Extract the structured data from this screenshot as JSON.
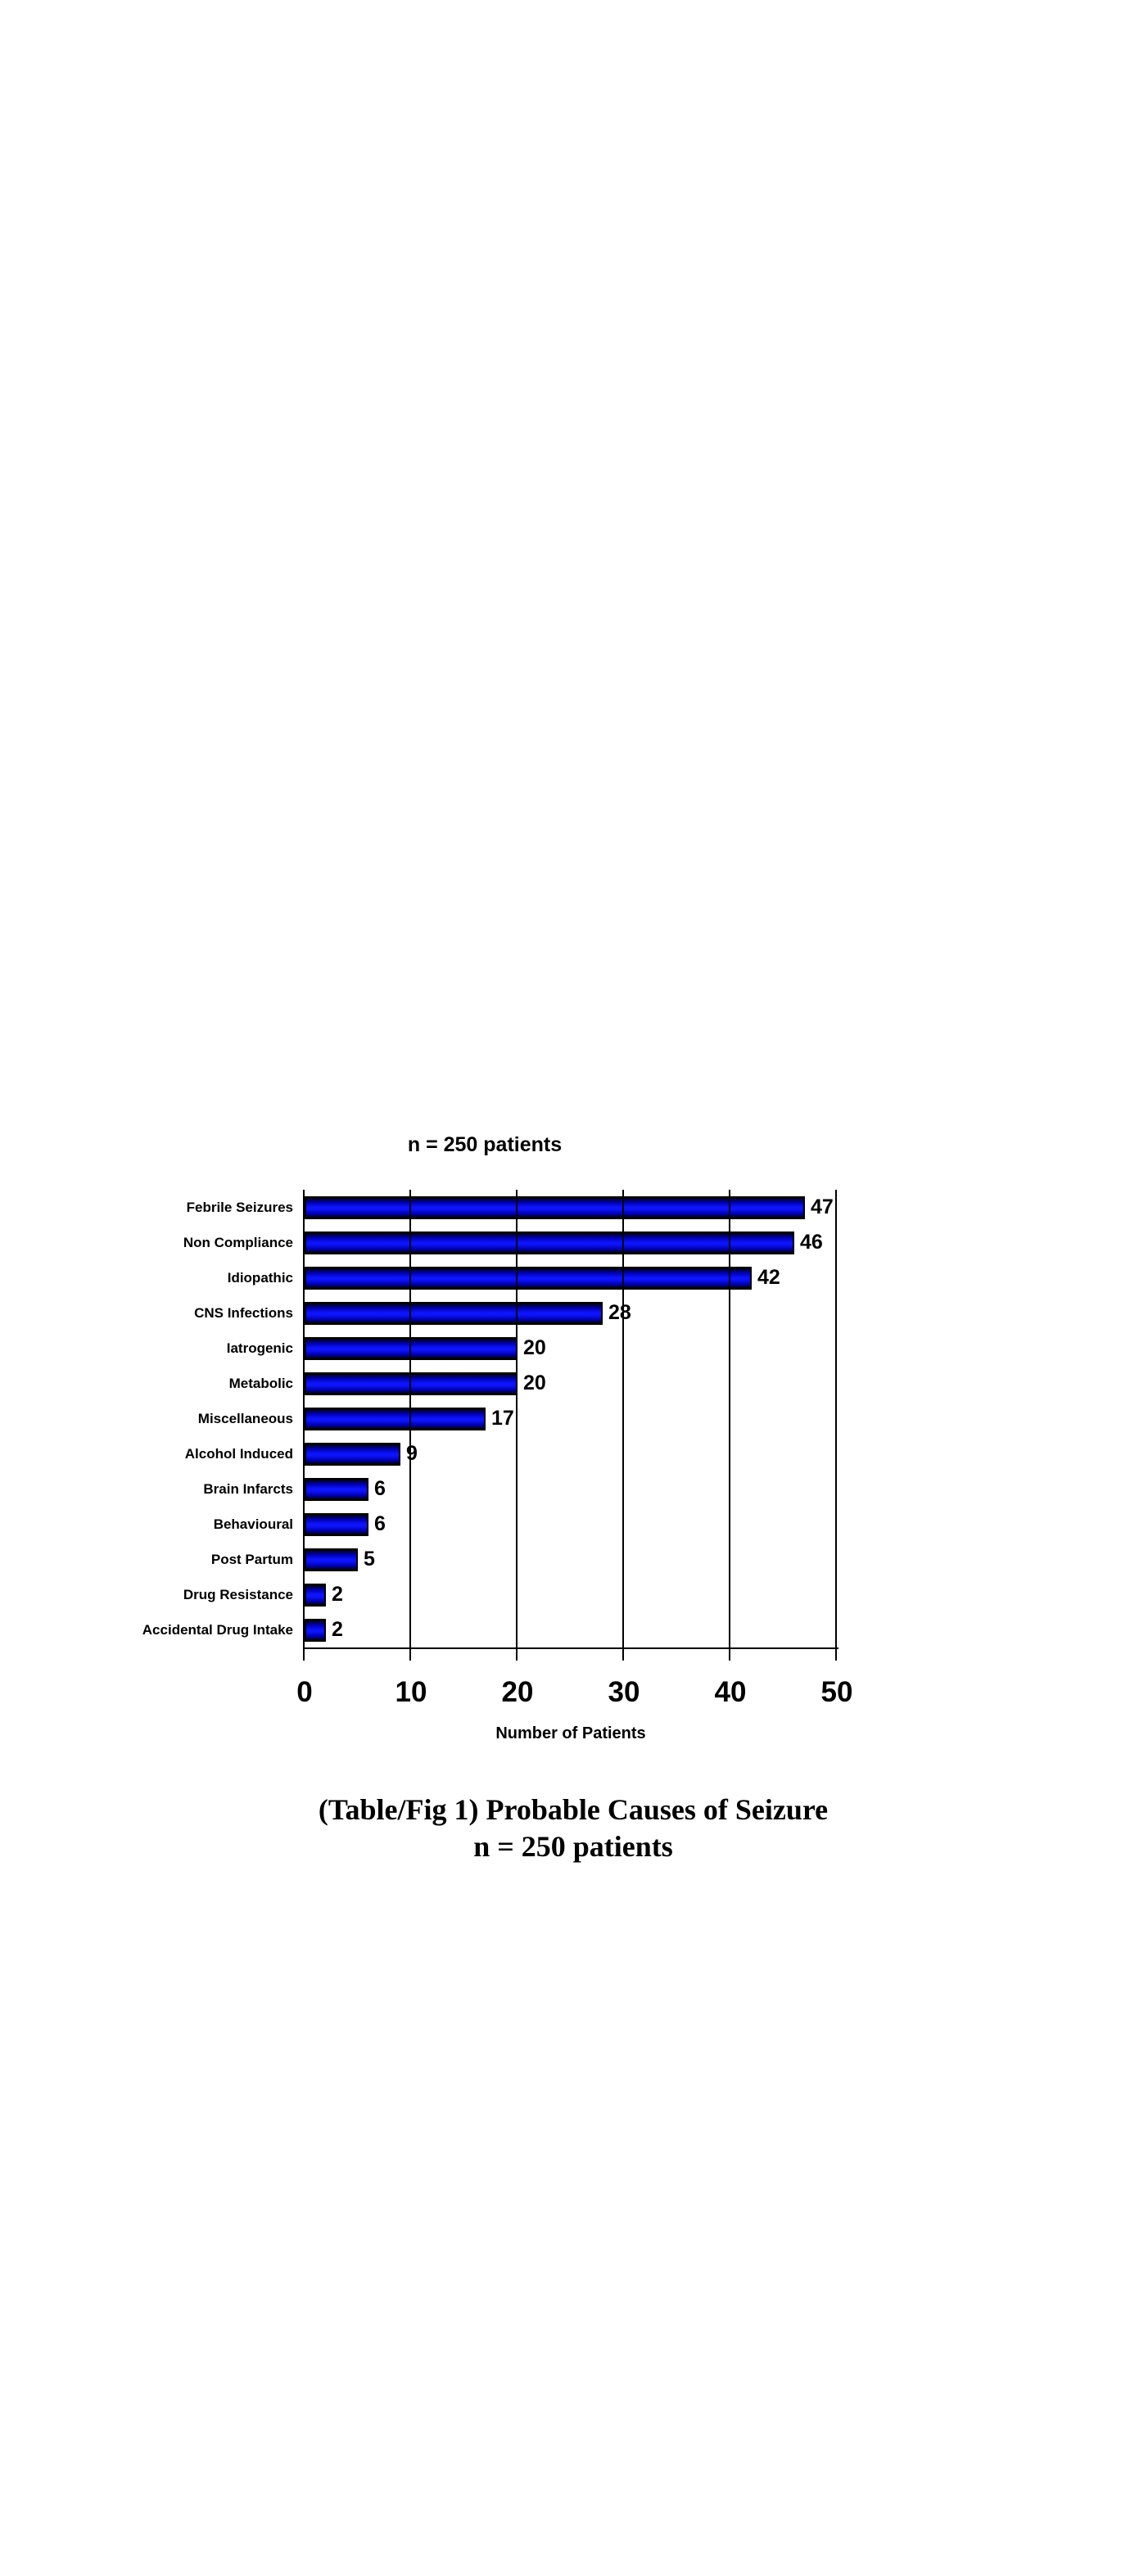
{
  "chart": {
    "title": "n = 250 patients",
    "x_axis_title": "Number of Patients"
  },
  "caption": {
    "line1": "(Table/Fig 1) Probable Causes of Seizure",
    "line2": "n = 250 patients"
  },
  "chart_data": {
    "type": "bar",
    "orientation": "horizontal",
    "title": "n = 250 patients",
    "categories": [
      "Febrile Seizures",
      "Non Compliance",
      "Idiopathic",
      "CNS Infections",
      "Iatrogenic",
      "Metabolic",
      "Miscellaneous",
      "Alcohol Induced",
      "Brain Infarcts",
      "Behavioural",
      "Post Partum",
      "Drug Resistance",
      "Accidental Drug Intake"
    ],
    "values": [
      47,
      46,
      42,
      28,
      20,
      20,
      17,
      9,
      6,
      6,
      5,
      2,
      2
    ],
    "xlabel": "Number of Patients",
    "ylabel": "",
    "xlim": [
      0,
      50
    ],
    "xticks": [
      0,
      10,
      20,
      30,
      40,
      50
    ],
    "grid": true,
    "legend_position": "none",
    "value_labels": true,
    "colors": {
      "bar_edge_shade": "#01010e",
      "bar_mid_shade": "#0000b0",
      "bar_center": "#0d14fa",
      "bar_border": "#000000",
      "axis": "#000000",
      "background": "#ffffff"
    }
  }
}
